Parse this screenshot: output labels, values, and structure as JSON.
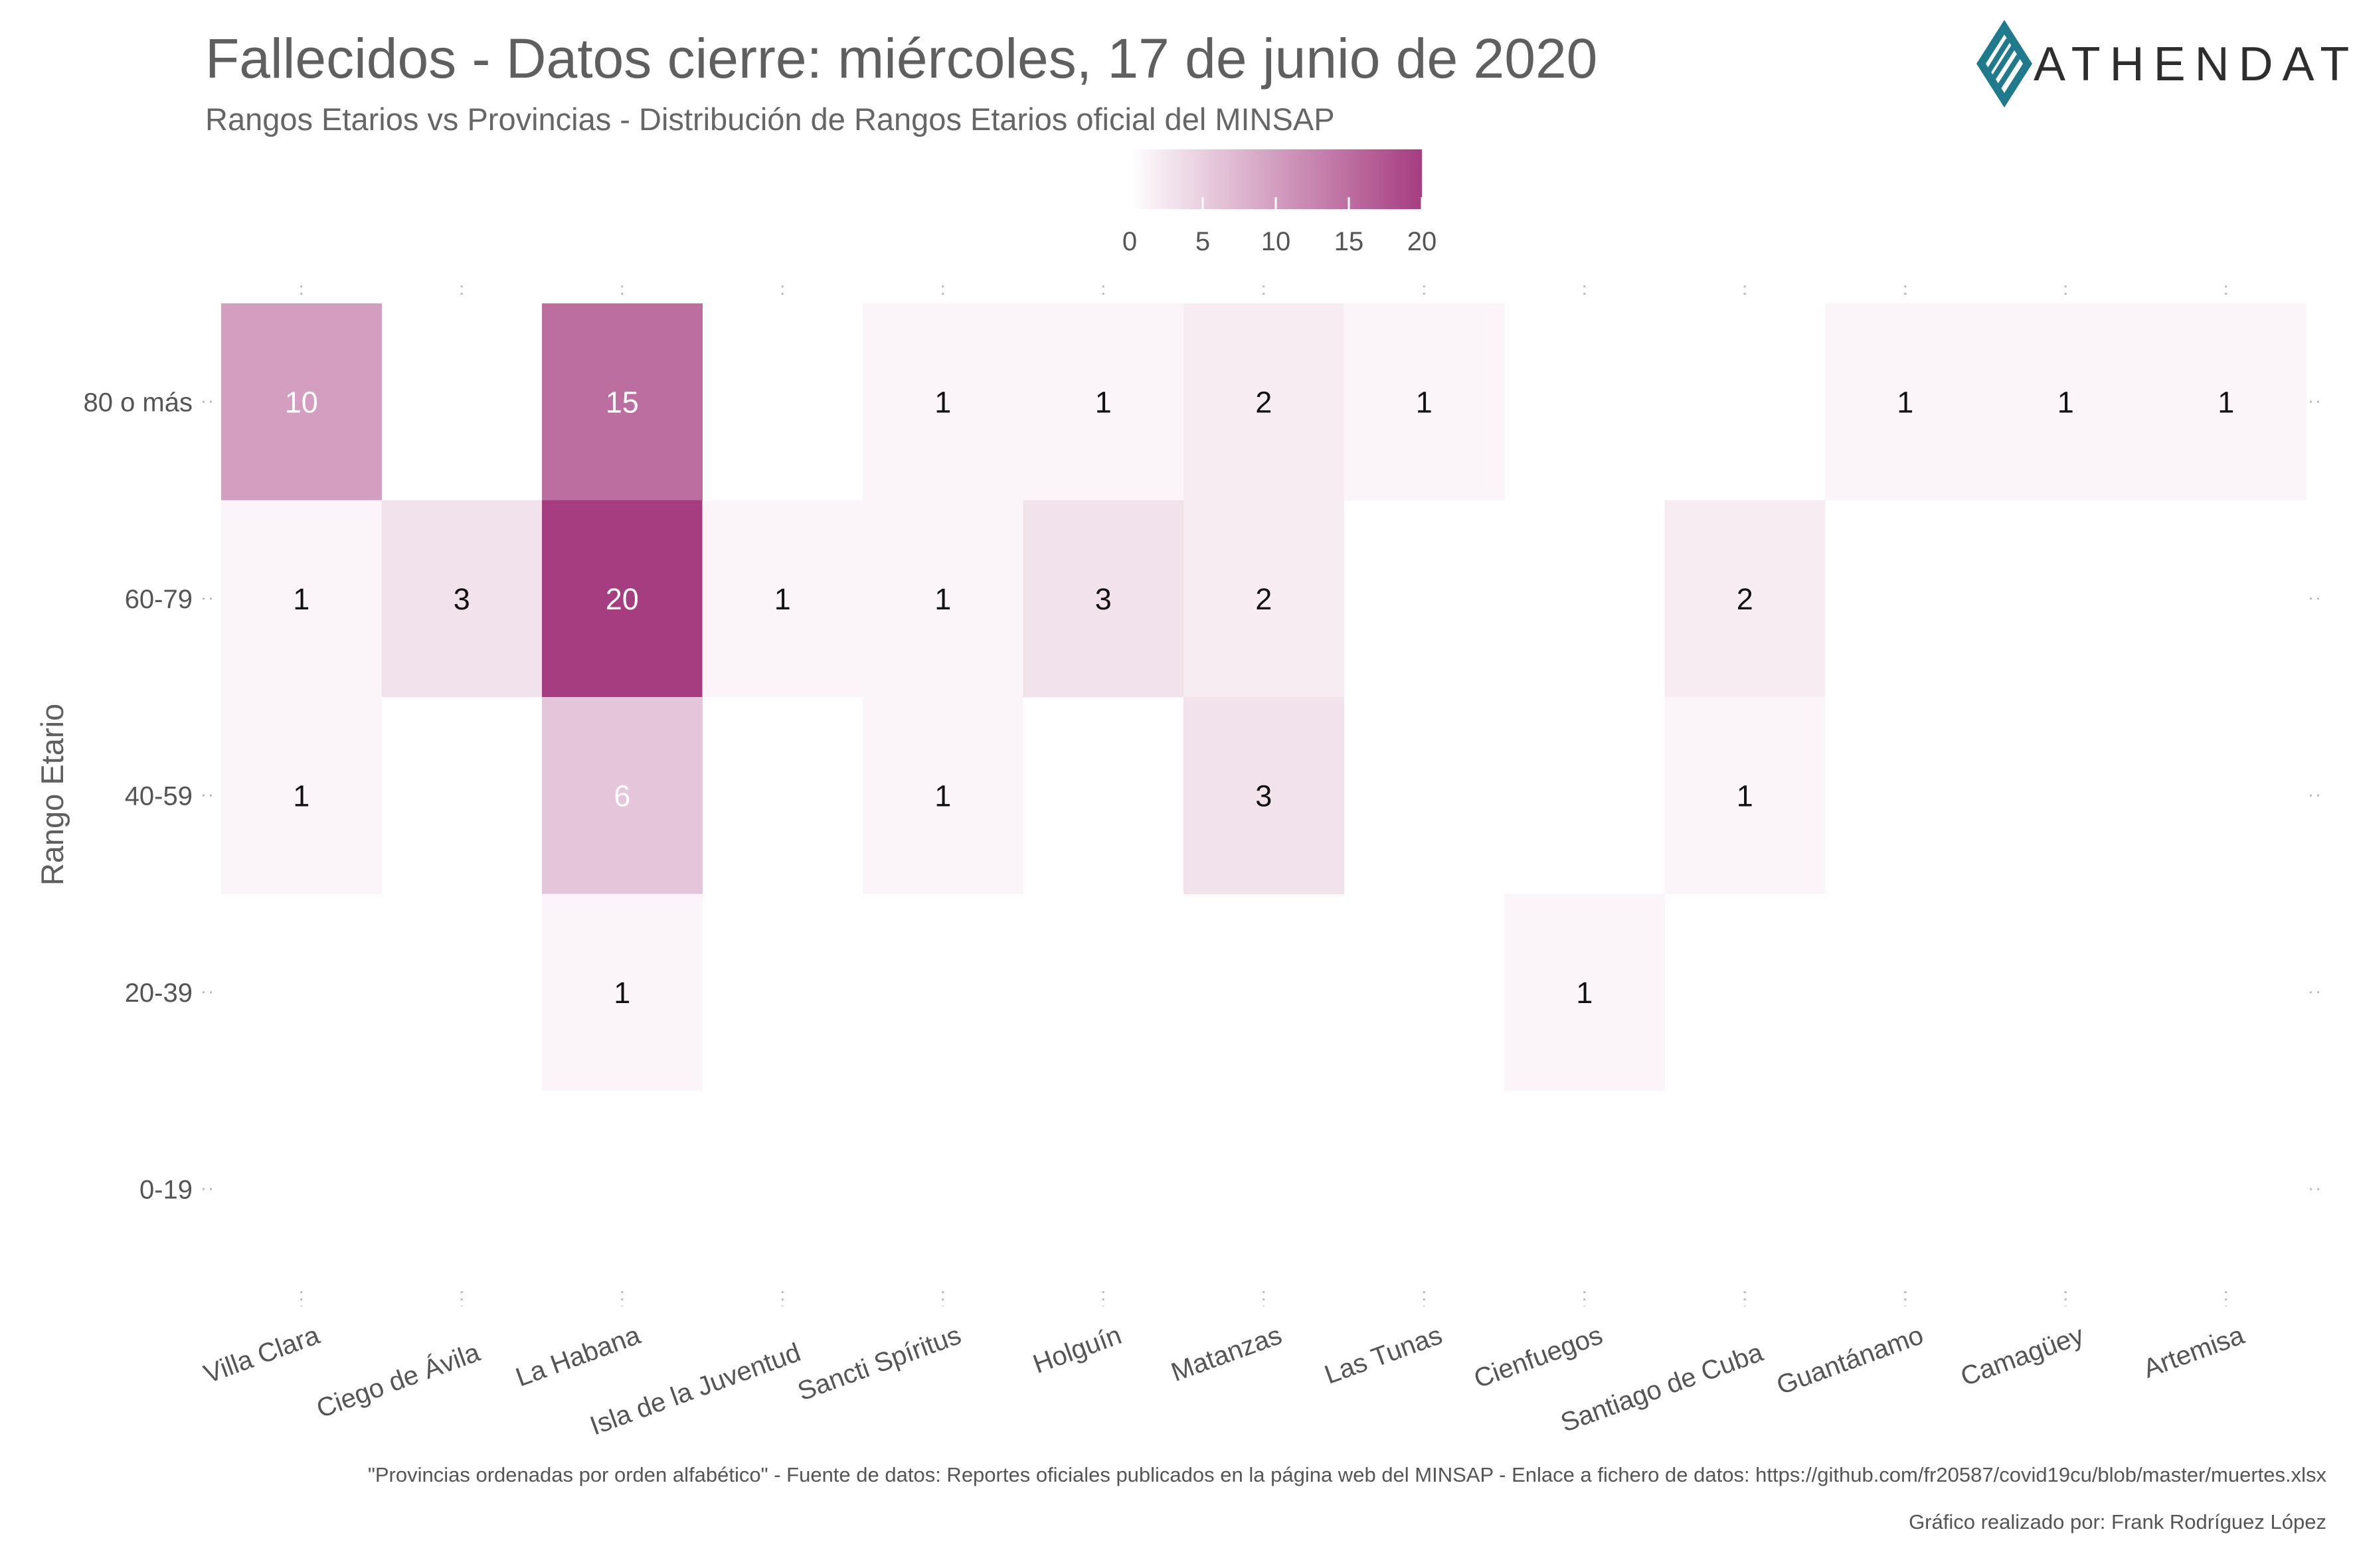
{
  "chart_data": {
    "type": "heatmap",
    "title": "Fallecidos - Datos cierre: miércoles, 17 de junio de 2020",
    "subtitle": "Rangos Etarios vs Provincias - Distribución de Rangos Etarios oficial del MINSAP",
    "xlabel": "",
    "ylabel": "Rango Etario",
    "x_categories": [
      "Villa Clara",
      "Ciego de Ávila",
      "La Habana",
      "Isla de la Juventud",
      "Sancti Spíritus",
      "Holguín",
      "Matanzas",
      "Las Tunas",
      "Cienfuegos",
      "Santiago de Cuba",
      "Guantánamo",
      "Camagüey",
      "Artemisa"
    ],
    "y_categories": [
      "80 o más",
      "60-79",
      "40-59",
      "20-39",
      "0-19"
    ],
    "values": [
      [
        10,
        null,
        15,
        null,
        1,
        1,
        2,
        1,
        null,
        null,
        1,
        1,
        1
      ],
      [
        1,
        3,
        20,
        1,
        1,
        3,
        2,
        null,
        null,
        2,
        null,
        null,
        null
      ],
      [
        1,
        null,
        6,
        null,
        1,
        null,
        3,
        null,
        null,
        1,
        null,
        null,
        null
      ],
      [
        null,
        null,
        1,
        null,
        null,
        null,
        null,
        null,
        1,
        null,
        null,
        null,
        null
      ],
      [
        null,
        null,
        null,
        null,
        null,
        null,
        null,
        null,
        null,
        null,
        null,
        null,
        null
      ]
    ],
    "legend": {
      "range": [
        0,
        20
      ],
      "ticks": [
        "0",
        "5",
        "10",
        "15",
        "20"
      ],
      "color_low": "#ffffff",
      "color_high": "#a63d80",
      "placement": "top"
    },
    "grid": false
  },
  "caption": {
    "source": "\"Provincias ordenadas por orden alfabético\" - Fuente de datos: Reportes oficiales publicados en la página web del MINSAP - Enlace a fichero de datos: https://github.com/fr20587/covid19cu/blob/master/muertes.xlsx",
    "author": "Gráfico realizado por: Frank Rodríguez López"
  },
  "logo": {
    "text": "ATHENDAT",
    "color": "#1f7a8c"
  }
}
